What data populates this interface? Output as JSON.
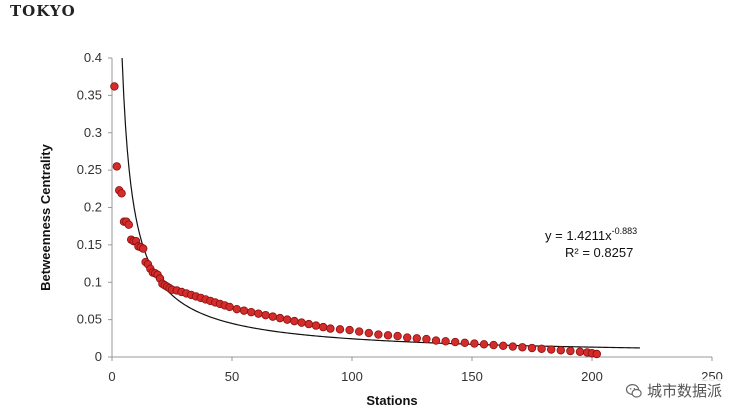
{
  "title": "TOKYO",
  "watermark": {
    "text": "城市数据派",
    "icon": "wechat-logo-icon"
  },
  "colors": {
    "points_fill": "#d42b2b",
    "points_stroke": "#8a1010",
    "fit_line": "#111111",
    "axis": "#999999"
  },
  "chart_data": {
    "type": "scatter",
    "title": "TOKYO",
    "xlabel": "Stations",
    "ylabel": "Betweenness Centrality",
    "xlim": [
      0,
      250
    ],
    "ylim": [
      0,
      0.4
    ],
    "xticks": [
      "0",
      "50",
      "100",
      "150",
      "200",
      "250"
    ],
    "yticks": [
      "0",
      "0.05",
      "0.1",
      "0.15",
      "0.2",
      "0.25",
      "0.3",
      "0.35",
      "0.4"
    ],
    "grid": false,
    "trendline": {
      "type": "power",
      "a": 1.4211,
      "b": -0.883,
      "equation_prefix": "y = 1.4211x",
      "equation_exponent": "-0.883",
      "r2_label": "R² = 0.8257",
      "x_range": [
        1,
        220
      ]
    },
    "series": [
      {
        "points": [
          [
            1,
            0.362
          ],
          [
            2,
            0.255
          ],
          [
            3,
            0.223
          ],
          [
            4,
            0.219
          ],
          [
            5,
            0.181
          ],
          [
            6,
            0.181
          ],
          [
            7,
            0.177
          ],
          [
            8,
            0.157
          ],
          [
            9,
            0.155
          ],
          [
            10,
            0.155
          ],
          [
            11,
            0.148
          ],
          [
            12,
            0.147
          ],
          [
            13,
            0.145
          ],
          [
            14,
            0.127
          ],
          [
            15,
            0.124
          ],
          [
            16,
            0.118
          ],
          [
            17,
            0.113
          ],
          [
            18,
            0.112
          ],
          [
            19,
            0.11
          ],
          [
            20,
            0.105
          ],
          [
            21,
            0.098
          ],
          [
            22,
            0.096
          ],
          [
            23,
            0.094
          ],
          [
            24,
            0.092
          ],
          [
            25,
            0.09
          ],
          [
            27,
            0.089
          ],
          [
            29,
            0.087
          ],
          [
            31,
            0.085
          ],
          [
            33,
            0.083
          ],
          [
            35,
            0.081
          ],
          [
            37,
            0.079
          ],
          [
            39,
            0.077
          ],
          [
            41,
            0.075
          ],
          [
            43,
            0.073
          ],
          [
            45,
            0.071
          ],
          [
            47,
            0.069
          ],
          [
            49,
            0.067
          ],
          [
            52,
            0.064
          ],
          [
            55,
            0.062
          ],
          [
            58,
            0.06
          ],
          [
            61,
            0.058
          ],
          [
            64,
            0.056
          ],
          [
            67,
            0.054
          ],
          [
            70,
            0.052
          ],
          [
            73,
            0.05
          ],
          [
            76,
            0.048
          ],
          [
            79,
            0.046
          ],
          [
            82,
            0.044
          ],
          [
            85,
            0.042
          ],
          [
            88,
            0.04
          ],
          [
            91,
            0.038
          ],
          [
            95,
            0.037
          ],
          [
            99,
            0.036
          ],
          [
            103,
            0.034
          ],
          [
            107,
            0.032
          ],
          [
            111,
            0.03
          ],
          [
            115,
            0.029
          ],
          [
            119,
            0.028
          ],
          [
            123,
            0.026
          ],
          [
            127,
            0.025
          ],
          [
            131,
            0.024
          ],
          [
            135,
            0.022
          ],
          [
            139,
            0.021
          ],
          [
            143,
            0.02
          ],
          [
            147,
            0.019
          ],
          [
            151,
            0.018
          ],
          [
            155,
            0.017
          ],
          [
            159,
            0.016
          ],
          [
            163,
            0.015
          ],
          [
            167,
            0.014
          ],
          [
            171,
            0.013
          ],
          [
            175,
            0.012
          ],
          [
            179,
            0.011
          ],
          [
            183,
            0.01
          ],
          [
            187,
            0.009
          ],
          [
            191,
            0.008
          ],
          [
            195,
            0.007
          ],
          [
            198,
            0.006
          ],
          [
            200,
            0.005
          ],
          [
            202,
            0.004
          ]
        ]
      }
    ]
  }
}
